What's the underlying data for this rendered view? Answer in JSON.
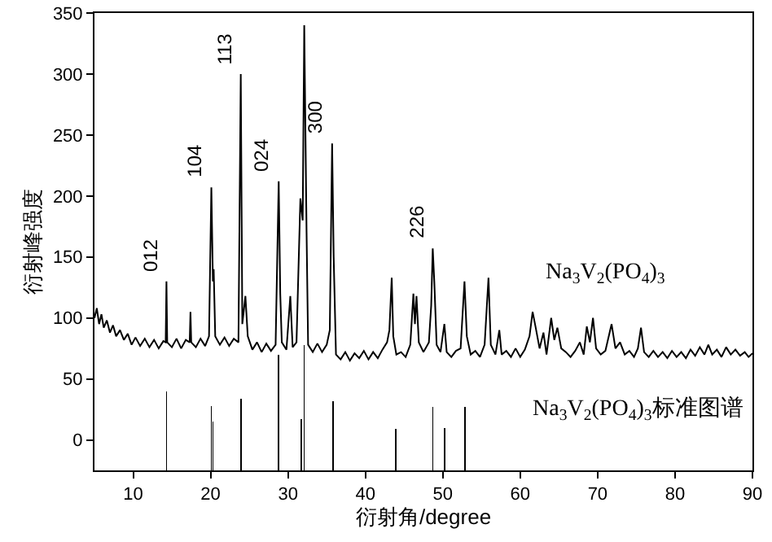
{
  "chart_data": {
    "type": "line",
    "xlabel": "衍射角/degree",
    "ylabel": "衍射峰强度",
    "xlim": [
      5,
      90
    ],
    "ylim": [
      -25,
      350
    ],
    "xticks": [
      10,
      20,
      30,
      40,
      50,
      60,
      70,
      80,
      90
    ],
    "yticks": [
      0,
      50,
      100,
      150,
      200,
      250,
      300,
      350
    ],
    "series": [
      {
        "name": "Na$_{3}$V$_{2}$(PO$_{4}$)$_{3}$",
        "color": "#000000",
        "x": [
          5,
          5.3,
          5.6,
          5.9,
          6.2,
          6.6,
          7,
          7.4,
          7.8,
          8.3,
          8.8,
          9.3,
          9.8,
          10.3,
          10.9,
          11.5,
          12.1,
          12.7,
          13.3,
          13.9,
          14.2,
          14.3,
          14.4,
          15,
          15.6,
          16.2,
          16.8,
          17.3,
          17.4,
          17.5,
          18.1,
          18.7,
          19.3,
          19.8,
          20.1,
          20.3,
          20.4,
          20.6,
          21.2,
          21.8,
          22.4,
          23,
          23.6,
          23.9,
          24.1,
          24.5,
          24.8,
          25.4,
          26,
          26.6,
          27.2,
          27.8,
          28.4,
          28.8,
          29,
          29.2,
          29.8,
          30.3,
          30.6,
          31.1,
          31.6,
          31.9,
          32.1,
          32.4,
          32.6,
          33.2,
          33.8,
          34.4,
          35,
          35.4,
          35.7,
          35.9,
          36.2,
          36.8,
          37.4,
          38,
          38.6,
          39.2,
          39.8,
          40.4,
          41,
          41.6,
          42.2,
          42.8,
          43.1,
          43.4,
          43.6,
          44,
          44.6,
          45.2,
          45.8,
          46.2,
          46.4,
          46.6,
          46.9,
          47.5,
          48.2,
          48.5,
          48.7,
          48.9,
          49.2,
          49.7,
          50.2,
          50.5,
          51.1,
          51.7,
          52.3,
          52.8,
          53.1,
          53.6,
          54.2,
          54.8,
          55.4,
          55.9,
          56.2,
          56.8,
          57.3,
          57.6,
          58.2,
          58.8,
          59.4,
          60,
          60.6,
          61.2,
          61.6,
          62,
          62.5,
          63,
          63.4,
          64,
          64.4,
          64.8,
          65.3,
          65.9,
          66.5,
          67.1,
          67.7,
          68.2,
          68.6,
          69,
          69.4,
          69.8,
          70.4,
          71,
          71.8,
          72.3,
          72.9,
          73.5,
          74.1,
          74.7,
          75.2,
          75.6,
          76,
          76.6,
          77.2,
          77.8,
          78.4,
          79,
          79.6,
          80.2,
          80.8,
          81.4,
          82,
          82.6,
          83.2,
          83.8,
          84.3,
          84.8,
          85.4,
          86,
          86.6,
          87.2,
          87.8,
          88.4,
          89,
          89.5,
          90
        ],
        "values": [
          100,
          108,
          95,
          103,
          92,
          98,
          88,
          94,
          85,
          90,
          82,
          87,
          78,
          84,
          77,
          83,
          76,
          82,
          75,
          81,
          80,
          130,
          80,
          76,
          83,
          75,
          82,
          80,
          105,
          80,
          76,
          83,
          77,
          85,
          207,
          130,
          140,
          85,
          78,
          84,
          77,
          83,
          80,
          300,
          95,
          118,
          85,
          74,
          80,
          72,
          79,
          73,
          78,
          212,
          120,
          80,
          74,
          118,
          76,
          80,
          198,
          180,
          340,
          170,
          78,
          72,
          79,
          72,
          78,
          90,
          243,
          150,
          70,
          66,
          72,
          65,
          71,
          67,
          73,
          66,
          72,
          67,
          74,
          80,
          90,
          133,
          85,
          70,
          72,
          68,
          78,
          120,
          95,
          118,
          80,
          72,
          80,
          110,
          157,
          130,
          78,
          72,
          95,
          72,
          68,
          73,
          75,
          130,
          85,
          70,
          73,
          68,
          78,
          133,
          78,
          70,
          90,
          70,
          73,
          68,
          75,
          68,
          74,
          85,
          105,
          92,
          75,
          88,
          70,
          100,
          82,
          92,
          75,
          72,
          68,
          73,
          80,
          70,
          93,
          80,
          100,
          75,
          70,
          73,
          95,
          75,
          80,
          70,
          73,
          68,
          75,
          92,
          72,
          68,
          73,
          68,
          72,
          67,
          73,
          68,
          72,
          67,
          74,
          69,
          76,
          70,
          78,
          70,
          74,
          68,
          76,
          70,
          74,
          69,
          72,
          68,
          71
        ]
      },
      {
        "name": "Na$_{3}$V$_{2}$(PO$_{4}$)$_{3}$标准图谱",
        "type": "bar",
        "color": "#000000",
        "x": [
          14.3,
          20.1,
          20.3,
          23.9,
          28.8,
          31.7,
          32.1,
          35.8,
          43.9,
          48.7,
          50.2,
          52.9
        ],
        "base": [
          -25,
          -25,
          -25,
          -25,
          -25,
          -25,
          -25,
          -25,
          -25,
          -25,
          -25,
          -25
        ],
        "values": [
          65,
          53,
          40,
          59,
          95,
          42,
          103,
          57,
          34,
          52,
          35,
          52
        ]
      }
    ],
    "annotations": [
      {
        "text": "012",
        "x": 14.3,
        "y": 130
      },
      {
        "text": "104",
        "x": 20.1,
        "y": 207
      },
      {
        "text": "113",
        "x": 23.9,
        "y": 300
      },
      {
        "text": "024",
        "x": 28.8,
        "y": 212
      },
      {
        "text": "300",
        "x": 35.7,
        "y": 243
      },
      {
        "text": "226",
        "x": 48.7,
        "y": 157
      }
    ]
  }
}
